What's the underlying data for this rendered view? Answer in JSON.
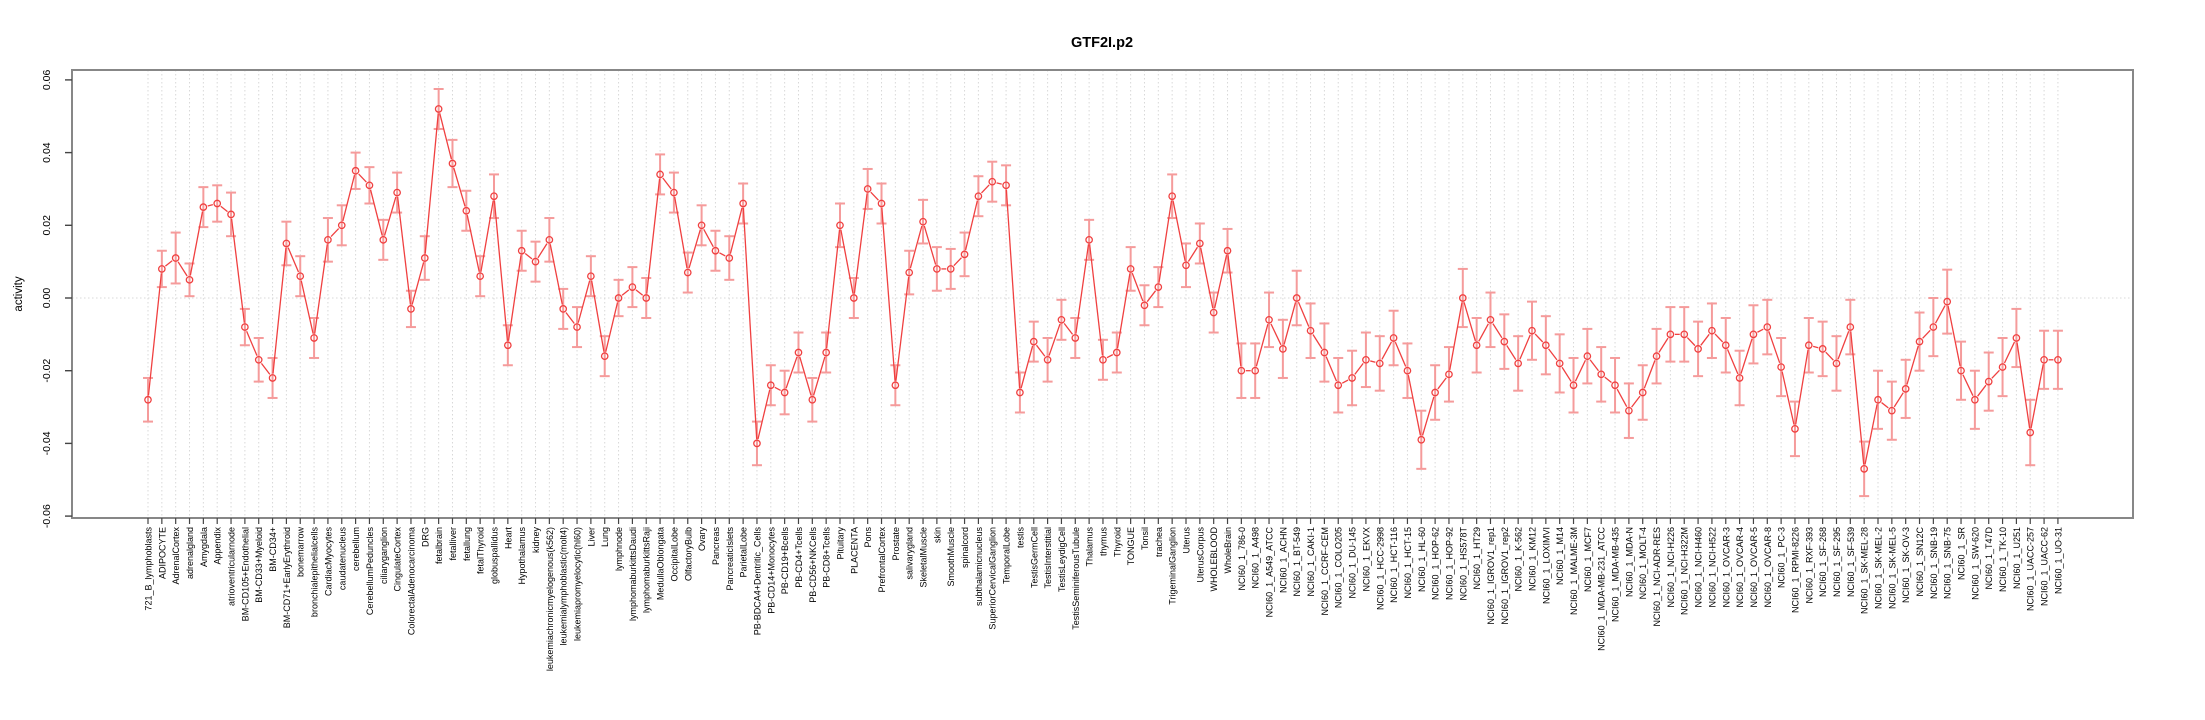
{
  "chart_data": {
    "type": "line",
    "title": "GTF2I.p2",
    "xlabel": "",
    "ylabel": "activity",
    "ylim": [
      -0.06,
      0.06
    ],
    "grid": "vertical dotted gridline at every category; dotted horizontal line at 0",
    "legend_position": "none",
    "marker": "open-circle",
    "error_bars": true,
    "y_ticks": [
      0.06,
      0.04,
      0.02,
      0.0,
      -0.02,
      -0.04,
      -0.06
    ],
    "y_tick_labels": [
      "0.06",
      "0.04",
      "0.02",
      "0.00",
      "-0.02",
      "-0.04",
      "-0.06"
    ],
    "colors": {
      "line": "#f04040",
      "marker": "#f04040",
      "error_bar": "#f59b9b",
      "grid": "#d8d8d8",
      "zero_line": "#d8d8d8",
      "box": "#878787",
      "tick": "#444444",
      "text": "#000000"
    },
    "categories": [
      "721_B_lymphoblasts",
      "ADIPOCYTE",
      "AdrenalCortex",
      "adrenalgland",
      "Amygdala",
      "Appendix",
      "atrioventricularnode",
      "BM-CD105+Endothelial",
      "BM-CD33+Myeloid",
      "BM-CD34+",
      "BM-CD71+EarlyErythroid",
      "bonemarrow",
      "bronchialepithelialcells",
      "CardiacMyocytes",
      "caudatenucleus",
      "cerebellum",
      "CerebellumPeduncles",
      "ciliaryganglion",
      "CingulateCortex",
      "ColorectalAdenocarcinoma",
      "DRG",
      "fetalbrain",
      "fetalliver",
      "fetallung",
      "fetalThyroid",
      "globuspallidus",
      "Heart",
      "Hypothalamus",
      "kidney",
      "leukemiachronicmyelogenous(k562)",
      "leukemialymphoblastic(molt4)",
      "leukemiapromyelocytic(hl60)",
      "Liver",
      "Lung",
      "lymphnode",
      "lymphomaburkittsDaudi",
      "lymphomaburkittsRaji",
      "MedullaOblongata",
      "OccipitalLobe",
      "OlfactoryBulb",
      "Ovary",
      "Pancreas",
      "PancreaticIslets",
      "ParietalLobe",
      "PB-BDCA4+Dentritic_Cells",
      "PB-CD14+Monocytes",
      "PB-CD19+Bcells",
      "PB-CD4+Tcells",
      "PB-CD56+NKCells",
      "PB-CD8+Tcells",
      "Pituitary",
      "PLACENTA",
      "Pons",
      "PrefrontalCortex",
      "Prostate",
      "salivarygland",
      "SkeletalMuscle",
      "skin",
      "SmoothMuscle",
      "spinalcord",
      "subthalamicnucleus",
      "SuperiorCervicalGanglion",
      "TemporalLobe",
      "testis",
      "TestisGermCell",
      "TestisInterstitial",
      "TestisLeydigCell",
      "TestisSeminiferousTubule",
      "Thalamus",
      "thymus",
      "Thyroid",
      "TONGUE",
      "Tonsil",
      "trachea",
      "TrigeminalGanglion",
      "Uterus",
      "UterusCorpus",
      "WHOLEBLOOD",
      "WholeBrain",
      "NCI60_1_786-0",
      "NCI60_1_A498",
      "NCI60_1_A549_ATCC",
      "NCI60_1_ACHN",
      "NCI60_1_BT-549",
      "NCI60_1_CAKI-1",
      "NCI60_1_CCRF-CEM",
      "NCI60_1_COLO205",
      "NCI60_1_DU-145",
      "NCI60_1_EKVX",
      "NCI60_1_HCC-2998",
      "NCI60_1_HCT-116",
      "NCI60_1_HCT-15",
      "NCI60_1_HL-60",
      "NCI60_1_HOP-62",
      "NCI60_1_HOP-92",
      "NCI60_1_HS578T",
      "NCI60_1_HT29",
      "NCI60_1_IGROV1_rep1",
      "NCI60_1_IGROV1_rep2",
      "NCI60_1_K-562",
      "NCI60_1_KM12",
      "NCI60_1_LOXIMVI",
      "NCI60_1_M14",
      "NCI60_1_MALME-3M",
      "NCI60_1_MCF7",
      "NCI60_1_MDA-MB-231_ATCC",
      "NCI60_1_MDA-MB-435",
      "NCI60_1_MDA-N",
      "NCI60_1_MOLT-4",
      "NCI60_1_NCI-ADR-RES",
      "NCI60_1_NCI-H226",
      "NCI60_1_NCI-H322M",
      "NCI60_1_NCI-H460",
      "NCI60_1_NCI-H522",
      "NCI60_1_OVCAR-3",
      "NCI60_1_OVCAR-4",
      "NCI60_1_OVCAR-5",
      "NCI60_1_OVCAR-8",
      "NCI60_1_PC-3",
      "NCI60_1_RPMI-8226",
      "NCI60_1_RXF-393",
      "NCI60_1_SF-268",
      "NCI60_1_SF-295",
      "NCI60_1_SF-539",
      "NCI60_1_SK-MEL-28",
      "NCI60_1_SK-MEL-2",
      "NCI60_1_SK-MEL-5",
      "NCI60_1_SK-OV-3",
      "NCI60_1_SN12C",
      "NCI60_1_SNB-19",
      "NCI60_1_SNB-75",
      "NCI60_1_SR",
      "NCI60_1_SW-620",
      "NCI60_1_T47D",
      "NCI60_1_TK-10",
      "NCI60_1_U251",
      "NCI60_1_UACC-257",
      "NCI60_1_UACC-62",
      "NCI60_1_UO-31"
    ],
    "series": [
      {
        "name": "GTF2I.p2 activity",
        "values": [
          -0.028,
          0.008,
          0.011,
          0.005,
          0.025,
          0.026,
          0.023,
          -0.008,
          -0.017,
          -0.022,
          0.015,
          0.006,
          -0.011,
          0.016,
          0.02,
          0.035,
          0.031,
          0.016,
          0.029,
          -0.003,
          0.011,
          0.052,
          0.037,
          0.024,
          0.006,
          0.028,
          -0.013,
          0.013,
          0.01,
          0.016,
          -0.003,
          -0.008,
          0.006,
          -0.016,
          0.0,
          0.003,
          0.0,
          0.034,
          0.029,
          0.007,
          0.02,
          0.013,
          0.011,
          0.026,
          -0.04,
          -0.024,
          -0.026,
          -0.015,
          -0.028,
          -0.015,
          0.02,
          0.0,
          0.03,
          0.026,
          -0.024,
          0.007,
          0.021,
          0.008,
          0.008,
          0.012,
          0.028,
          0.032,
          0.031,
          -0.026,
          -0.012,
          -0.017,
          -0.006,
          -0.011,
          0.016,
          -0.017,
          -0.015,
          0.008,
          -0.002,
          0.003,
          0.028,
          0.009,
          0.015,
          -0.004,
          0.013,
          -0.02,
          -0.02,
          -0.006,
          -0.014,
          0.0,
          -0.009,
          -0.015,
          -0.024,
          -0.022,
          -0.017,
          -0.018,
          -0.011,
          -0.02,
          -0.039,
          -0.026,
          -0.021,
          0.0,
          -0.013,
          -0.006,
          -0.012,
          -0.018,
          -0.009,
          -0.013,
          -0.018,
          -0.024,
          -0.016,
          -0.021,
          -0.024,
          -0.031,
          -0.026,
          -0.016,
          -0.01,
          -0.01,
          -0.014,
          -0.009,
          -0.013,
          -0.022,
          -0.01,
          -0.008,
          -0.019,
          -0.036,
          -0.013,
          -0.014,
          -0.018,
          -0.008,
          -0.047,
          -0.028,
          -0.031,
          -0.025,
          -0.012,
          -0.008,
          -0.001,
          -0.02,
          -0.028,
          -0.023,
          -0.019,
          -0.011,
          -0.037,
          -0.017,
          -0.017
        ],
        "error": [
          0.006,
          0.005,
          0.007,
          0.0045,
          0.0055,
          0.005,
          0.006,
          0.005,
          0.006,
          0.0055,
          0.006,
          0.0055,
          0.0055,
          0.006,
          0.0055,
          0.005,
          0.005,
          0.0055,
          0.0055,
          0.005,
          0.006,
          0.0055,
          0.0065,
          0.0055,
          0.0055,
          0.006,
          0.0055,
          0.0055,
          0.0055,
          0.006,
          0.0055,
          0.0055,
          0.0055,
          0.0055,
          0.005,
          0.0055,
          0.0055,
          0.0055,
          0.0055,
          0.0055,
          0.0055,
          0.0055,
          0.006,
          0.0055,
          0.006,
          0.0055,
          0.006,
          0.0055,
          0.006,
          0.0055,
          0.006,
          0.0055,
          0.0055,
          0.0055,
          0.0055,
          0.006,
          0.006,
          0.006,
          0.0055,
          0.006,
          0.0055,
          0.0055,
          0.0055,
          0.0055,
          0.0055,
          0.006,
          0.0055,
          0.0055,
          0.0055,
          0.0055,
          0.0055,
          0.006,
          0.0055,
          0.0055,
          0.006,
          0.006,
          0.0055,
          0.0055,
          0.006,
          0.0075,
          0.0075,
          0.0075,
          0.008,
          0.0075,
          0.0075,
          0.008,
          0.0075,
          0.0075,
          0.0075,
          0.0075,
          0.0075,
          0.0075,
          0.008,
          0.0075,
          0.0075,
          0.008,
          0.0075,
          0.0075,
          0.0075,
          0.0075,
          0.008,
          0.008,
          0.008,
          0.0075,
          0.0075,
          0.0075,
          0.0075,
          0.0075,
          0.0075,
          0.0075,
          0.0075,
          0.0075,
          0.0075,
          0.0075,
          0.0075,
          0.0075,
          0.008,
          0.0075,
          0.008,
          0.0075,
          0.0075,
          0.0075,
          0.0075,
          0.0075,
          0.0075,
          0.008,
          0.008,
          0.008,
          0.008,
          0.008,
          0.0088,
          0.008,
          0.008,
          0.008,
          0.008,
          0.008,
          0.009,
          0.008,
          0.008
        ]
      }
    ]
  }
}
